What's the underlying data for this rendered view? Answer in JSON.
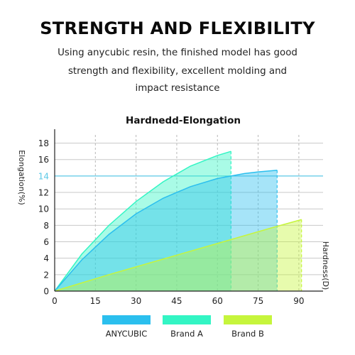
{
  "header": {
    "title": "STRENGTH AND FLEXIBILITY",
    "subtitle_lines": [
      "Using anycubic resin, the finished model has good",
      "strength and flexibility, excellent molding and",
      "impact resistance"
    ]
  },
  "chart_data": {
    "type": "area",
    "title": "Hardnedd-Elongation",
    "xlabel": "Hardness(D)",
    "ylabel": "Elongation(%)",
    "xlim": [
      0,
      95
    ],
    "ylim": [
      0,
      19
    ],
    "x_ticks": [
      "0",
      "15",
      "30",
      "45",
      "60",
      "75",
      "90"
    ],
    "y_ticks": [
      "0",
      "2",
      "4",
      "6",
      "8",
      "10",
      "12",
      "14",
      "16",
      "18"
    ],
    "highlight_line": {
      "y": 14,
      "label": "14",
      "color": "#5bc8e6"
    },
    "grid": true,
    "legend_position": "bottom",
    "series": [
      {
        "name": "Brand A",
        "color": "#33f5c4",
        "x": [
          0,
          10,
          20,
          30,
          40,
          50,
          60,
          65
        ],
        "y": [
          0,
          4.5,
          8.0,
          10.9,
          13.3,
          15.2,
          16.5,
          17.0
        ]
      },
      {
        "name": "ANYCUBIC",
        "color": "#2bbfee",
        "x": [
          0,
          10,
          20,
          30,
          40,
          50,
          60,
          70,
          75,
          82
        ],
        "y": [
          0,
          3.8,
          6.9,
          9.4,
          11.3,
          12.7,
          13.7,
          14.3,
          14.5,
          14.7
        ]
      },
      {
        "name": "Brand B",
        "color": "#c6f53c",
        "x": [
          0,
          20,
          40,
          60,
          80,
          91
        ],
        "y": [
          0,
          2.0,
          3.9,
          5.8,
          7.7,
          8.7
        ]
      }
    ],
    "legend": [
      {
        "name": "ANYCUBIC",
        "color": "#2bbfee"
      },
      {
        "name": "Brand A",
        "color": "#33f5c4"
      },
      {
        "name": "Brand B",
        "color": "#c6f53c"
      }
    ]
  }
}
